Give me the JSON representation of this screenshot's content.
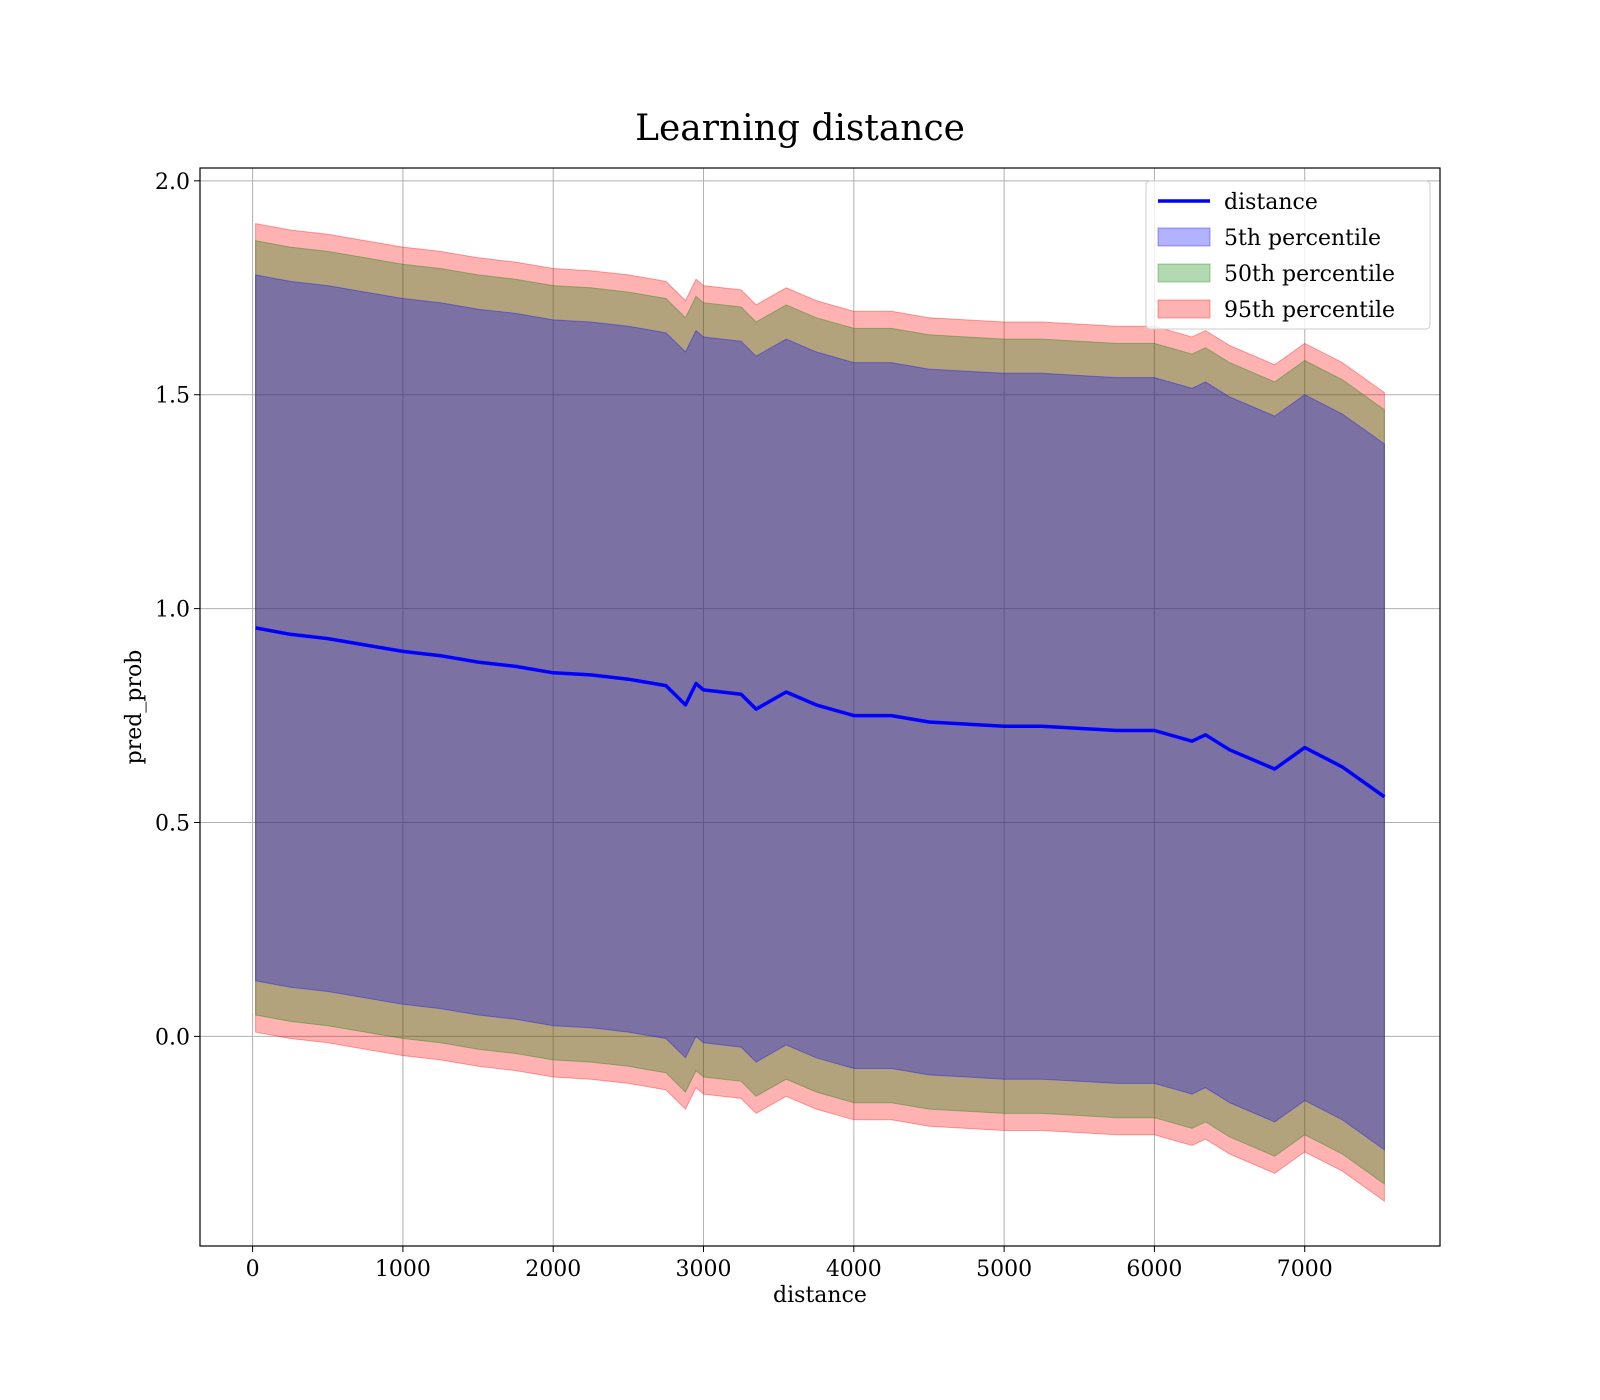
{
  "chart_data": {
    "type": "area",
    "title": "Learning distance",
    "xlabel": "distance",
    "ylabel": "pred_prob",
    "xlim": [
      -350,
      7900
    ],
    "ylim": [
      -0.49,
      2.03
    ],
    "xticks": [
      0,
      1000,
      2000,
      3000,
      4000,
      5000,
      6000,
      7000
    ],
    "xtick_labels": [
      "0",
      "1000",
      "2000",
      "3000",
      "4000",
      "5000",
      "6000",
      "7000"
    ],
    "yticks": [
      0.0,
      0.5,
      1.0,
      1.5,
      2.0
    ],
    "ytick_labels": [
      "0.0",
      "0.5",
      "1.0",
      "1.5",
      "2.0"
    ],
    "grid": true,
    "legend_position": "top-right",
    "x": [
      20,
      250,
      500,
      750,
      1000,
      1250,
      1500,
      1750,
      2000,
      2250,
      2500,
      2750,
      2880,
      2950,
      3000,
      3250,
      3350,
      3550,
      3750,
      4000,
      4250,
      4500,
      4750,
      5000,
      5250,
      5500,
      5750,
      6000,
      6250,
      6340,
      6500,
      6800,
      7000,
      7250,
      7530
    ],
    "series": [
      {
        "name": "distance",
        "kind": "line",
        "color": "#0000ff",
        "values": [
          0.955,
          0.94,
          0.93,
          0.915,
          0.9,
          0.89,
          0.875,
          0.865,
          0.85,
          0.845,
          0.835,
          0.82,
          0.775,
          0.825,
          0.81,
          0.8,
          0.765,
          0.805,
          0.775,
          0.75,
          0.75,
          0.735,
          0.73,
          0.725,
          0.725,
          0.72,
          0.715,
          0.715,
          0.69,
          0.705,
          0.67,
          0.625,
          0.675,
          0.63,
          0.56
        ]
      },
      {
        "name": "5th percentile",
        "kind": "band",
        "color": "#0000ff",
        "half_width": 0.825,
        "note": "band = distance ± half_width"
      },
      {
        "name": "50th percentile",
        "kind": "band",
        "color": "#008000",
        "half_width": 0.905
      },
      {
        "name": "95th percentile",
        "kind": "band",
        "color": "#ff0000",
        "half_width": 0.945
      }
    ]
  }
}
